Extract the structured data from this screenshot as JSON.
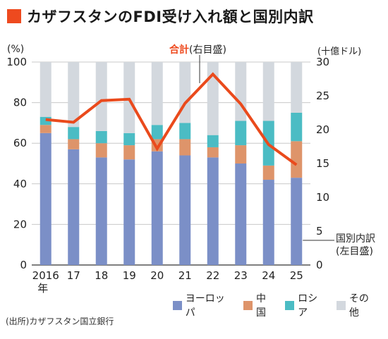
{
  "title": "カザフスタンのFDI受け入れ額と国別内訳",
  "unit_left": "(%)",
  "unit_right": "(十億ドル)",
  "total_label_accent": "合計",
  "total_label_rest": "(右目盛)",
  "breakdown_label_line1": "国別内訳",
  "breakdown_label_line2": "(左目盛)",
  "source": "(出所)カザフスタン国立銀行",
  "chart_data": {
    "type": "bar",
    "stacked": true,
    "categories": [
      "2016",
      "17",
      "18",
      "19",
      "20",
      "21",
      "22",
      "23",
      "24",
      "25"
    ],
    "first_category_suffix": "年",
    "series": [
      {
        "name": "ヨーロッパ",
        "color": "#7b8fc7",
        "values": [
          65,
          57,
          53,
          52,
          56,
          54,
          53,
          50,
          42,
          43
        ]
      },
      {
        "name": "中国",
        "color": "#de946a",
        "values": [
          4,
          5,
          7,
          7,
          6,
          8,
          5,
          9,
          7,
          18
        ]
      },
      {
        "name": "ロシア",
        "color": "#4bbcc4",
        "values": [
          4,
          6,
          6,
          6,
          7,
          8,
          6,
          12,
          22,
          14
        ]
      },
      {
        "name": "その他",
        "color": "#d3d8de",
        "values": [
          27,
          32,
          34,
          35,
          31,
          30,
          36,
          29,
          29,
          25
        ]
      }
    ],
    "line": {
      "name": "合計",
      "axis": "right",
      "color": "#ea4a1c",
      "values": [
        21.5,
        21.1,
        24.3,
        24.5,
        17.2,
        23.9,
        28.2,
        23.8,
        17.8,
        14.8
      ]
    },
    "ylim_left": [
      0,
      100
    ],
    "yticks_left": [
      0,
      20,
      40,
      60,
      80,
      100
    ],
    "ylim_right": [
      0,
      30
    ],
    "yticks_right": [
      0,
      5,
      10,
      15,
      20,
      25,
      30
    ],
    "grid": true,
    "legend_position": "bottom-right"
  }
}
